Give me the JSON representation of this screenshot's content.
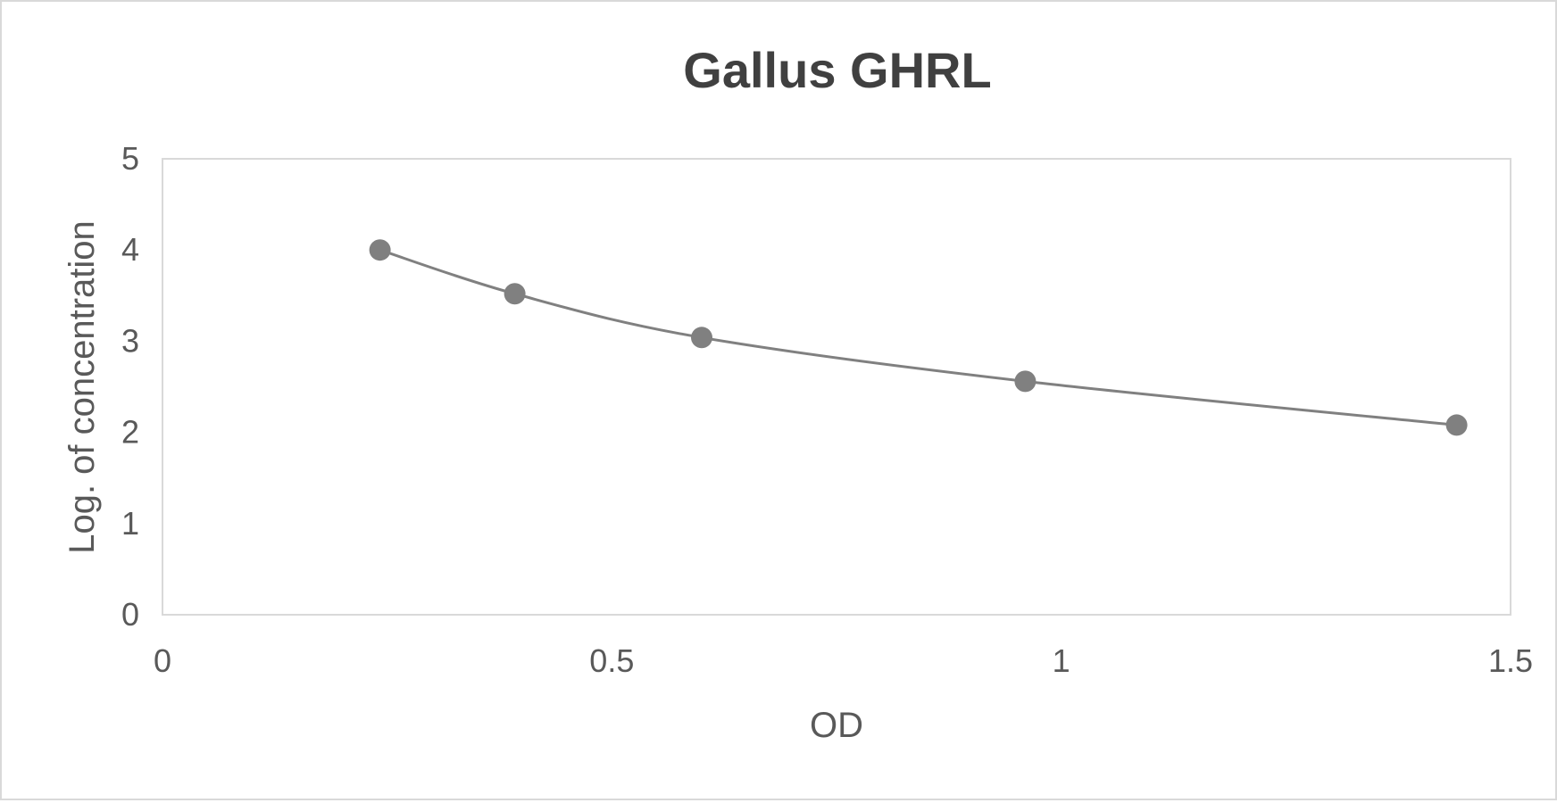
{
  "chart_data": {
    "type": "scatter",
    "title": "Gallus GHRL",
    "xlabel": "OD",
    "ylabel": "Log. of concentration",
    "xlim": [
      0,
      1.5
    ],
    "ylim": [
      0,
      5
    ],
    "x_ticks": [
      0,
      0.5,
      1,
      1.5
    ],
    "x_tick_labels": [
      "0",
      "0.5",
      "1",
      "1.5"
    ],
    "y_ticks": [
      0,
      1,
      2,
      3,
      4,
      5
    ],
    "y_tick_labels": [
      "0",
      "1",
      "2",
      "3",
      "4",
      "5"
    ],
    "grid": false,
    "smoothed_line": true,
    "series": [
      {
        "x": [
          0.242,
          0.392,
          0.6,
          0.96,
          1.44
        ],
        "y": [
          4.0,
          3.52,
          3.04,
          2.56,
          2.08
        ]
      }
    ],
    "colors": {
      "series": "#808080",
      "line": "#808080",
      "title": "#404040",
      "text": "#595959",
      "plot_border": "#d9d9d9"
    }
  }
}
